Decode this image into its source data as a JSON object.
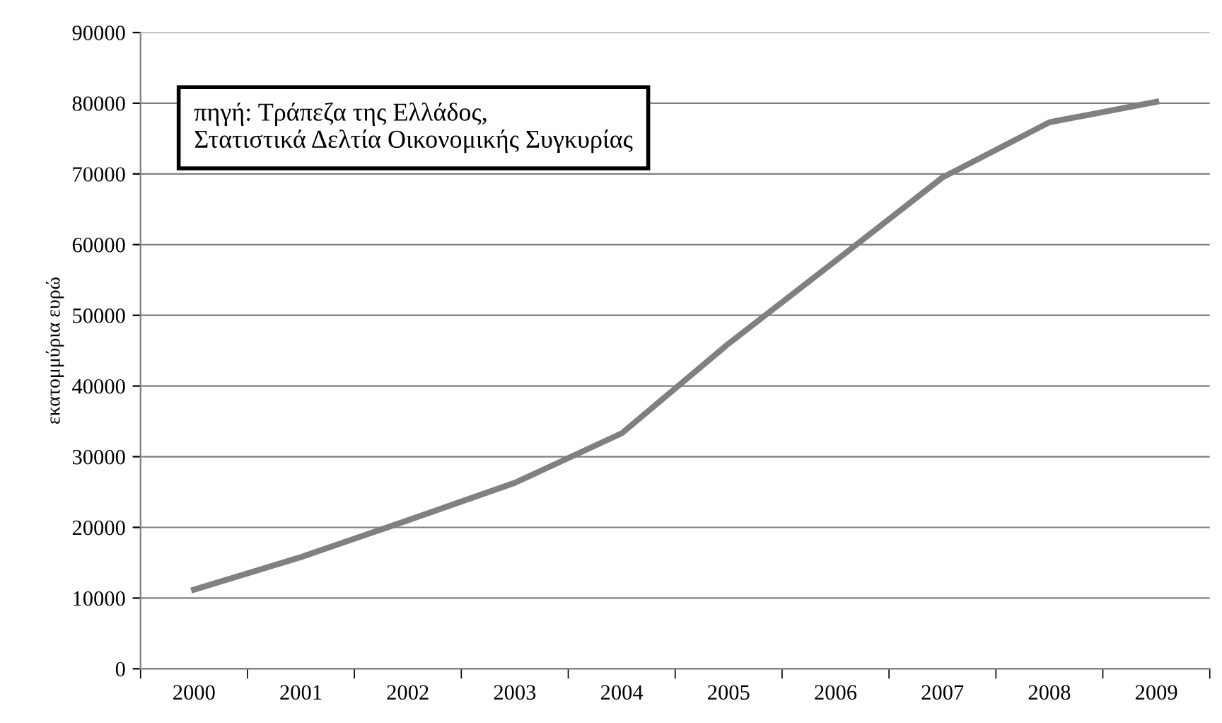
{
  "chart_data": {
    "type": "line",
    "ylabel": "εκατομμύρια ευρώ",
    "categories": [
      "2000",
      "2001",
      "2002",
      "2003",
      "2004",
      "2005",
      "2006",
      "2007",
      "2008",
      "2009"
    ],
    "series": [
      {
        "color": "#808080",
        "values": [
          11200,
          15800,
          21000,
          26300,
          33300,
          46000,
          57700,
          69500,
          77300,
          80200
        ]
      }
    ],
    "ylim": [
      0,
      90000
    ],
    "yticks": [
      0,
      10000,
      20000,
      30000,
      40000,
      50000,
      60000,
      70000,
      80000,
      90000
    ],
    "grid": "y",
    "legend": false,
    "marker": "none",
    "line_style": "solid",
    "annotations": [
      "πηγή: Τράπεζα της Ελλάδος,\nΣτατιστικά Δελτία Οικονομικής Συγκυρίας"
    ]
  }
}
